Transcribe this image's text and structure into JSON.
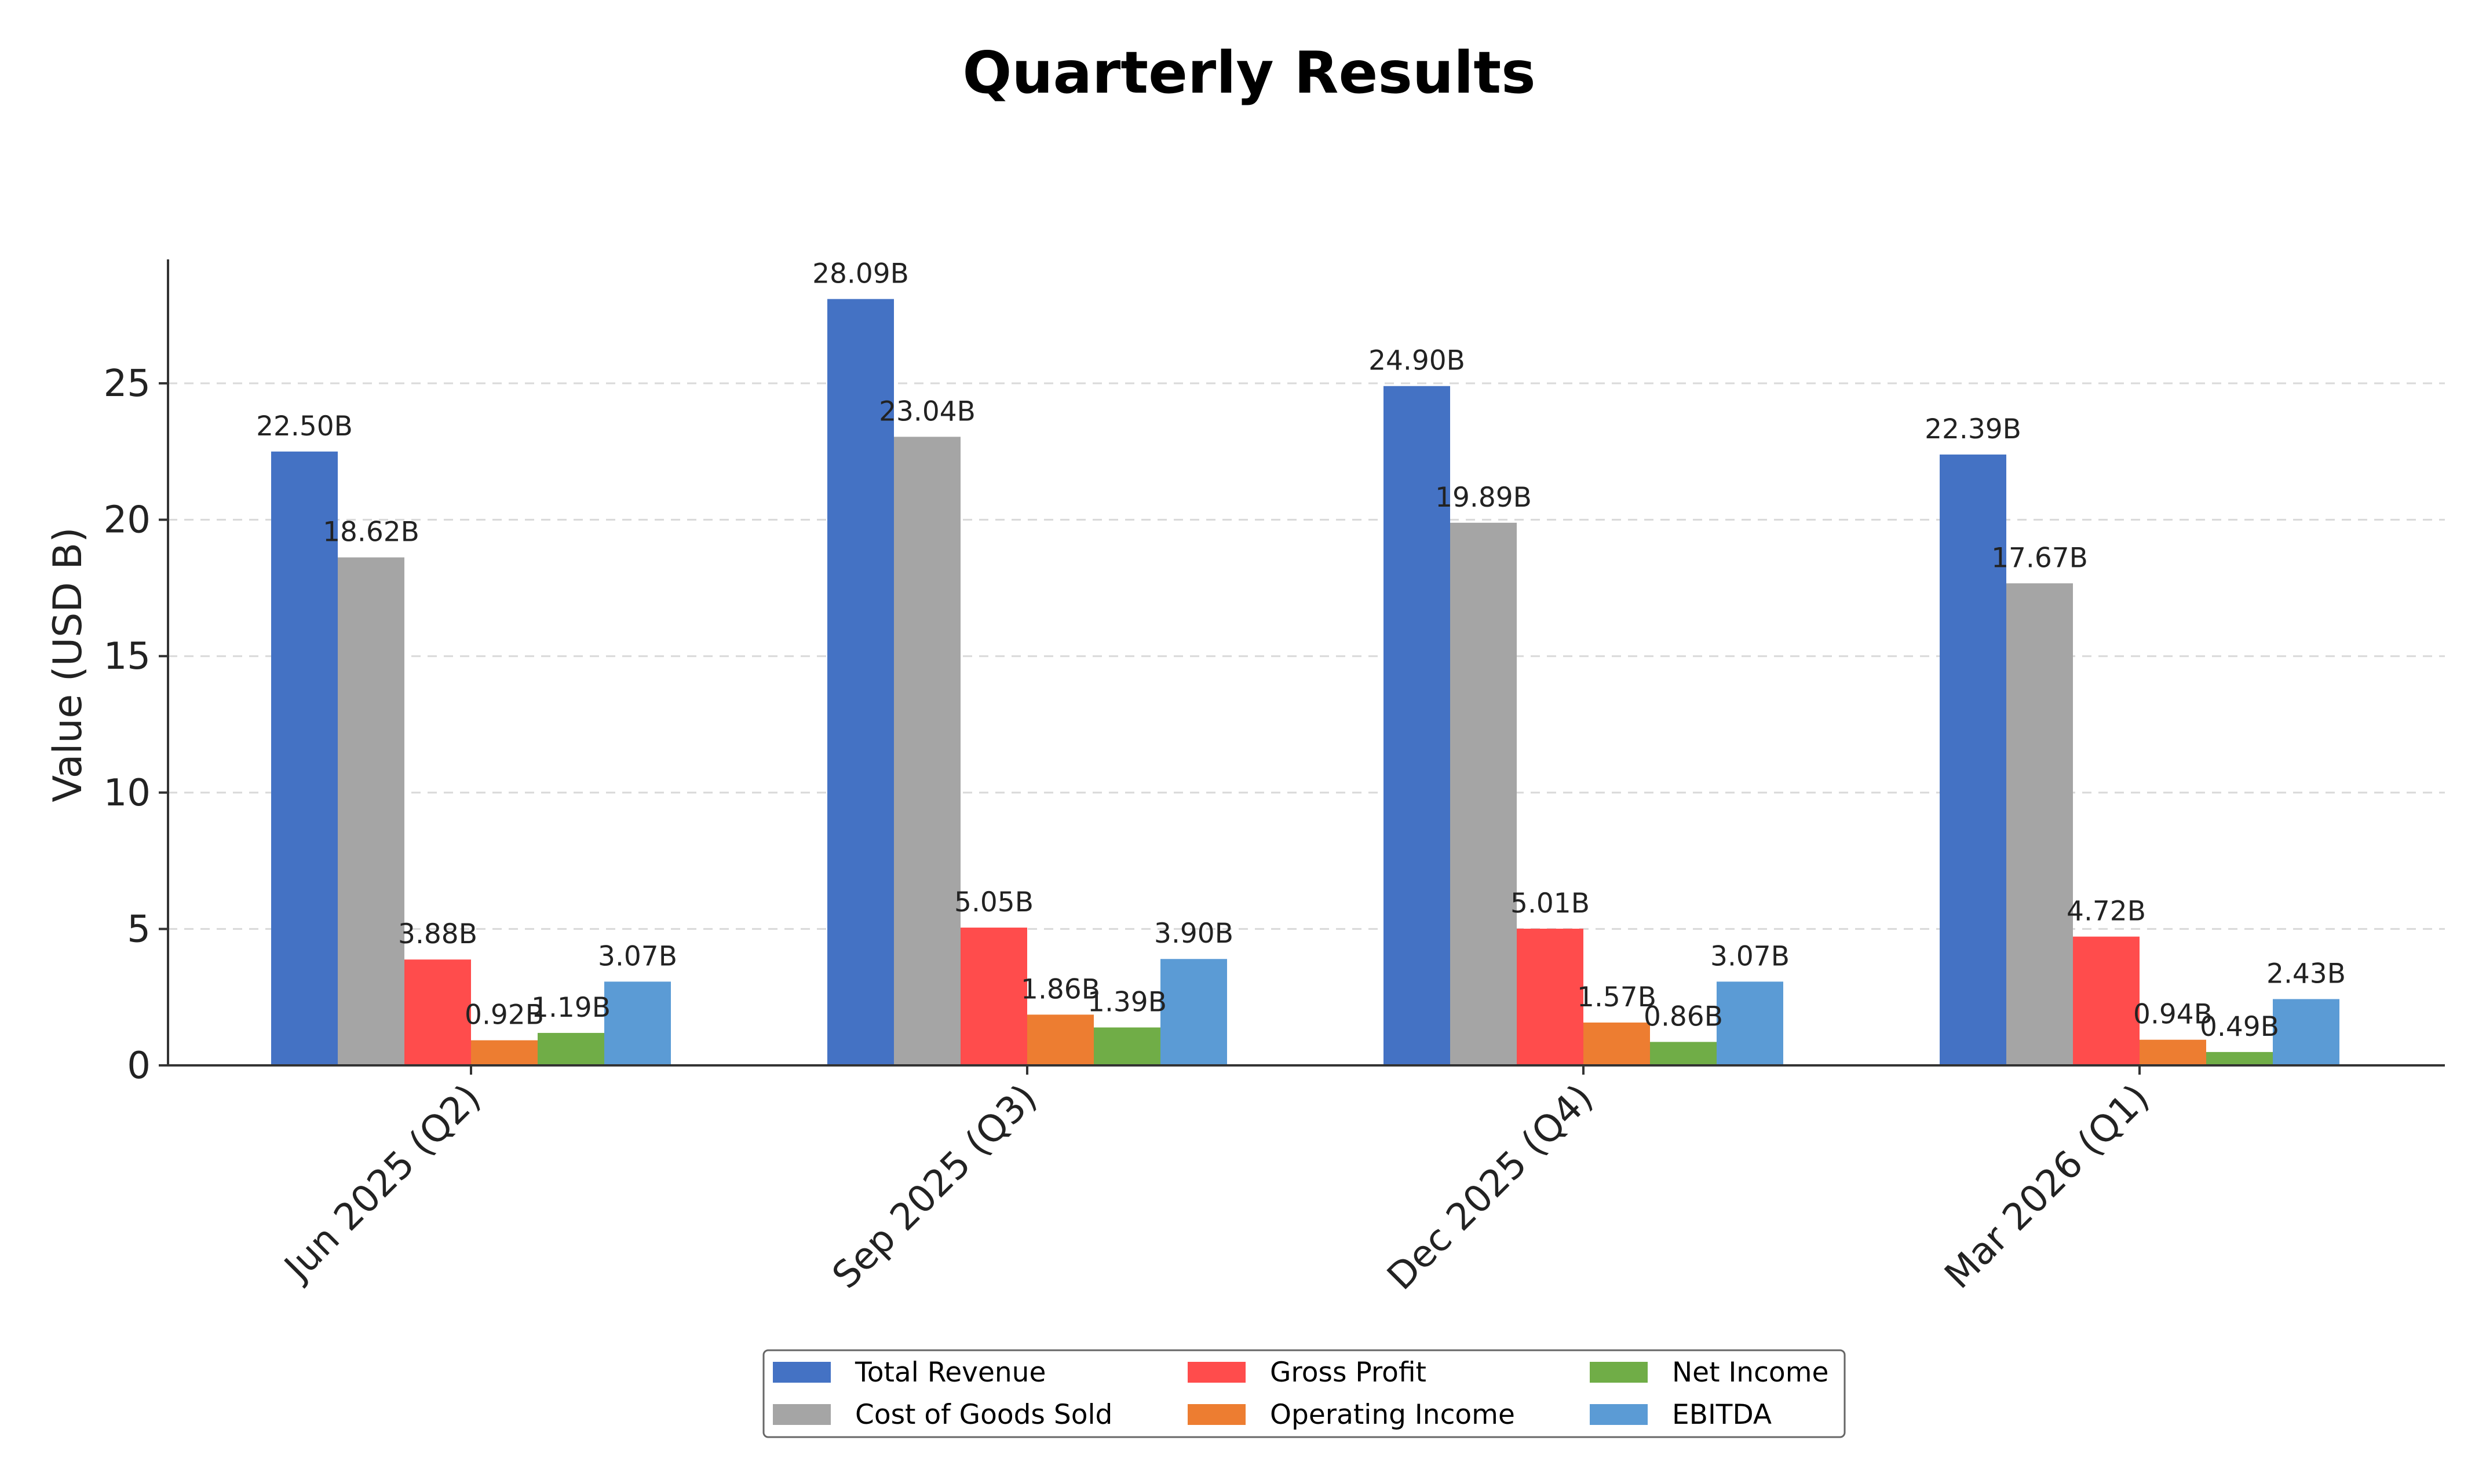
{
  "chart_data": {
    "type": "bar",
    "title": "Quarterly Results",
    "xlabel": "",
    "ylabel": "Value (USD B)",
    "ylim": [
      0,
      29.5
    ],
    "yticks": [
      0,
      5,
      10,
      15,
      20,
      25
    ],
    "grid": true,
    "legend_position": "bottom-center",
    "categories": [
      "Jun 2025 (Q2)",
      "Sep 2025 (Q3)",
      "Dec 2025 (Q4)",
      "Mar 2026 (Q1)"
    ],
    "series": [
      {
        "name": "Total Revenue",
        "color": "#4472C4",
        "values": [
          22.5,
          28.09,
          24.9,
          22.39
        ],
        "labels": [
          "22.50B",
          "28.09B",
          "24.90B",
          "22.39B"
        ]
      },
      {
        "name": "Cost of Goods Sold",
        "color": "#A5A5A5",
        "values": [
          18.62,
          23.04,
          19.89,
          17.67
        ],
        "labels": [
          "18.62B",
          "23.04B",
          "19.89B",
          "17.67B"
        ]
      },
      {
        "name": "Gross Profit",
        "color": "#FF4C4C",
        "values": [
          3.88,
          5.05,
          5.01,
          4.72
        ],
        "labels": [
          "3.88B",
          "5.05B",
          "5.01B",
          "4.72B"
        ]
      },
      {
        "name": "Operating Income",
        "color": "#ED7D31",
        "values": [
          0.92,
          1.86,
          1.57,
          0.94
        ],
        "labels": [
          "0.92B",
          "1.86B",
          "1.57B",
          "0.94B"
        ]
      },
      {
        "name": "Net Income",
        "color": "#70AD47",
        "values": [
          1.19,
          1.39,
          0.86,
          0.49
        ],
        "labels": [
          "1.19B",
          "1.39B",
          "0.86B",
          "0.49B"
        ]
      },
      {
        "name": "EBITDA",
        "color": "#5B9BD5",
        "values": [
          3.07,
          3.9,
          3.07,
          2.43
        ],
        "labels": [
          "3.07B",
          "3.90B",
          "3.07B",
          "2.43B"
        ]
      }
    ]
  }
}
